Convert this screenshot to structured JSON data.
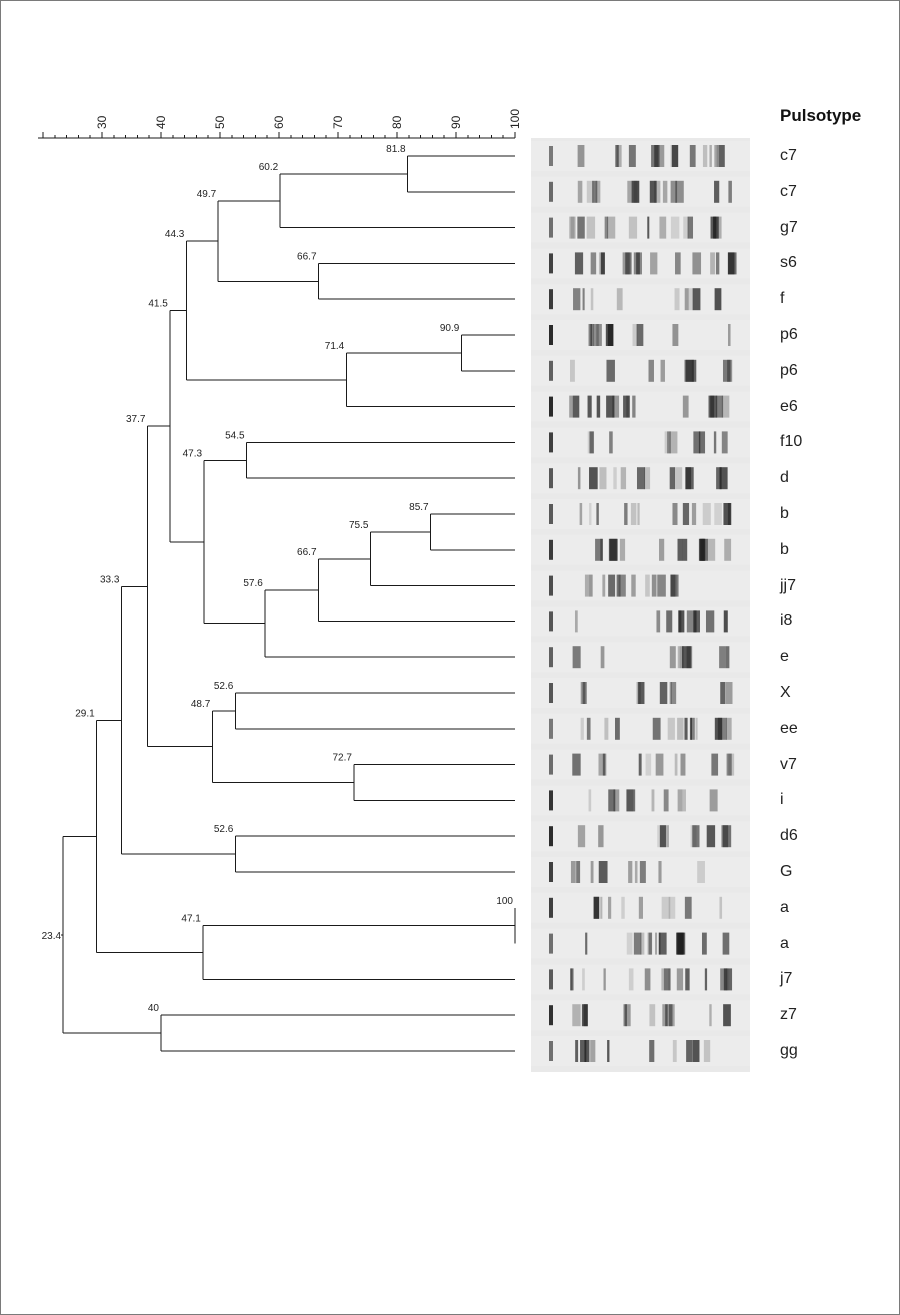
{
  "header": "Pulsotype",
  "axis": {
    "min": 20,
    "max": 100,
    "ticks": [
      {
        "value": 30,
        "label": "30"
      },
      {
        "value": 40,
        "label": "40"
      },
      {
        "value": 50,
        "label": "50"
      },
      {
        "value": 60,
        "label": "60"
      },
      {
        "value": 70,
        "label": "70"
      },
      {
        "value": 80,
        "label": "80"
      },
      {
        "value": 90,
        "label": "90"
      },
      {
        "value": 100,
        "label": "100"
      }
    ],
    "minor_step": 2
  },
  "leaves": [
    "c7",
    "c7",
    "g7",
    "s6",
    "f",
    "p6",
    "p6",
    "e6",
    "f10",
    "d",
    "b",
    "b",
    "jj7",
    "i8",
    "e",
    "X",
    "ee",
    "v7",
    "i",
    "d6",
    "G",
    "a",
    "a",
    "j7",
    "z7",
    "gg"
  ],
  "tree": {
    "sim": 23.4,
    "label": "23.4",
    "children": [
      {
        "sim": 29.1,
        "label": "29.1",
        "children": [
          {
            "sim": 33.3,
            "label": "33.3",
            "children": [
              {
                "sim": 37.7,
                "label": "37.7",
                "children": [
                  {
                    "sim": 41.5,
                    "label": "41.5",
                    "children": [
                      {
                        "sim": 44.3,
                        "label": "44.3",
                        "children": [
                          {
                            "sim": 49.7,
                            "label": "49.7",
                            "children": [
                              {
                                "sim": 60.2,
                                "label": "60.2",
                                "children": [
                                  {
                                    "sim": 81.8,
                                    "label": "81.8",
                                    "children": [
                                      {
                                        "leaf": 0
                                      },
                                      {
                                        "leaf": 1
                                      }
                                    ]
                                  },
                                  {
                                    "leaf": 2
                                  }
                                ]
                              },
                              {
                                "sim": 66.7,
                                "label": "66.7",
                                "children": [
                                  {
                                    "leaf": 3
                                  },
                                  {
                                    "leaf": 4
                                  }
                                ]
                              }
                            ]
                          },
                          {
                            "sim": 71.4,
                            "label": "71.4",
                            "children": [
                              {
                                "sim": 90.9,
                                "label": "90.9",
                                "children": [
                                  {
                                    "leaf": 5
                                  },
                                  {
                                    "leaf": 6
                                  }
                                ]
                              },
                              {
                                "leaf": 7
                              }
                            ]
                          }
                        ]
                      },
                      {
                        "sim": 47.3,
                        "label": "47.3",
                        "children": [
                          {
                            "sim": 54.5,
                            "label": "54.5",
                            "children": [
                              {
                                "leaf": 8
                              },
                              {
                                "leaf": 9
                              }
                            ]
                          },
                          {
                            "sim": 57.6,
                            "label": "57.6",
                            "children": [
                              {
                                "sim": 66.7,
                                "label": "66.7",
                                "children": [
                                  {
                                    "sim": 75.5,
                                    "label": "75.5",
                                    "children": [
                                      {
                                        "sim": 85.7,
                                        "label": "85.7",
                                        "children": [
                                          {
                                            "leaf": 10
                                          },
                                          {
                                            "leaf": 11
                                          }
                                        ]
                                      },
                                      {
                                        "leaf": 12
                                      }
                                    ]
                                  },
                                  {
                                    "leaf": 13
                                  }
                                ]
                              },
                              {
                                "leaf": 14
                              }
                            ]
                          }
                        ]
                      }
                    ]
                  },
                  {
                    "sim": 48.7,
                    "label": "48.7",
                    "children": [
                      {
                        "sim": 52.6,
                        "label": "52.6",
                        "children": [
                          {
                            "leaf": 15
                          },
                          {
                            "leaf": 16
                          }
                        ]
                      },
                      {
                        "sim": 72.7,
                        "label": "72.7",
                        "children": [
                          {
                            "leaf": 17
                          },
                          {
                            "leaf": 18
                          }
                        ]
                      }
                    ]
                  }
                ]
              },
              {
                "sim": 52.6,
                "label": "52.6",
                "children": [
                  {
                    "leaf": 19
                  },
                  {
                    "leaf": 20
                  }
                ]
              }
            ]
          },
          {
            "sim": 47.1,
            "label": "47.1",
            "children": [
              {
                "sim": 100,
                "label": "100",
                "children": [
                  {
                    "leaf": 21
                  },
                  {
                    "leaf": 22
                  }
                ]
              },
              {
                "leaf": 23
              }
            ]
          }
        ]
      },
      {
        "sim": 40,
        "label": "40",
        "children": [
          {
            "leaf": 24
          },
          {
            "leaf": 25
          }
        ]
      }
    ]
  },
  "colors": {
    "line": "#1a1a1a",
    "gel_background": "#e9e9e9",
    "band": "#1c1c1c"
  }
}
